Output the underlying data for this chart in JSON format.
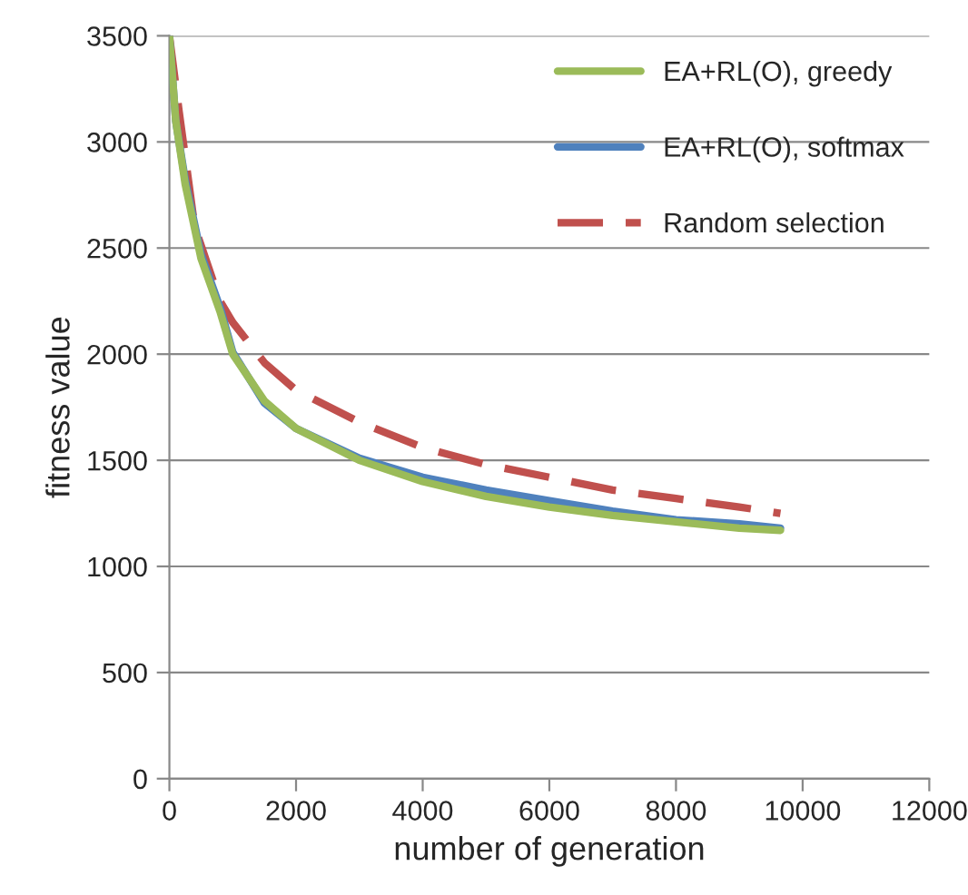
{
  "chart_data": {
    "type": "line",
    "xlabel": "number of generation",
    "ylabel": "fitness value",
    "xlim": [
      0,
      12000
    ],
    "xticks": [
      0,
      2000,
      4000,
      6000,
      8000,
      10000,
      12000
    ],
    "ylim": [
      0,
      3500
    ],
    "yticks": [
      0,
      500,
      1000,
      1500,
      2000,
      2500,
      3000,
      3500
    ],
    "grid": "y",
    "legend": "top right",
    "marker": "none",
    "series": [
      {
        "name": "EA+RL(O), greedy",
        "color": "#9bbb59",
        "line_style": "solid",
        "x": [
          0,
          100,
          250,
          500,
          800,
          1000,
          1500,
          2000,
          3000,
          4000,
          5000,
          6000,
          7000,
          8000,
          9000,
          9650
        ],
        "values": [
          3500,
          3100,
          2800,
          2450,
          2200,
          2000,
          1780,
          1650,
          1500,
          1400,
          1330,
          1280,
          1240,
          1210,
          1180,
          1170
        ]
      },
      {
        "name": "EA+RL(O), softmax",
        "color": "#4f81bd",
        "line_style": "solid",
        "x": [
          0,
          100,
          250,
          500,
          800,
          1000,
          1500,
          2000,
          3000,
          4000,
          5000,
          6000,
          7000,
          8000,
          9000,
          9650
        ],
        "values": [
          3500,
          3100,
          2820,
          2470,
          2220,
          2010,
          1770,
          1650,
          1510,
          1420,
          1360,
          1310,
          1260,
          1220,
          1200,
          1180
        ]
      },
      {
        "name": "Random selection",
        "color": "#c0504d",
        "line_style": "dashed",
        "x": [
          0,
          150,
          400,
          800,
          1000,
          1500,
          2000,
          3000,
          4000,
          5000,
          6000,
          7000,
          8000,
          9000,
          9650
        ],
        "values": [
          3500,
          3150,
          2600,
          2250,
          2150,
          1960,
          1830,
          1680,
          1560,
          1480,
          1420,
          1360,
          1320,
          1280,
          1250
        ]
      }
    ]
  }
}
